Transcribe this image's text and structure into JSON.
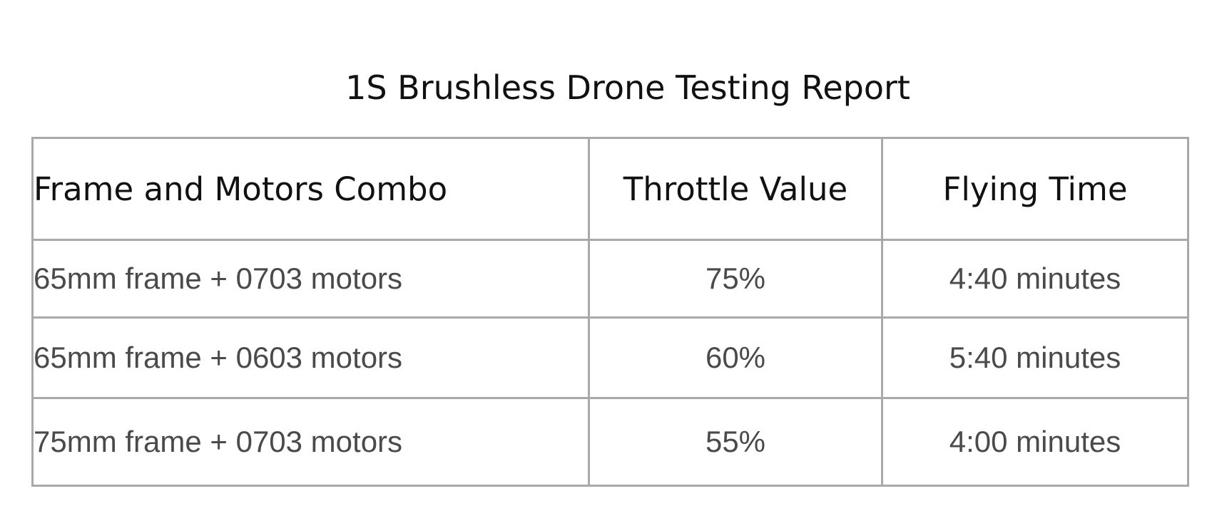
{
  "title": "1S Brushless Drone Testing Report",
  "table": {
    "headers": [
      "Frame and Motors Combo",
      "Throttle Value",
      "Flying Time"
    ],
    "rows": [
      [
        "65mm frame + 0703 motors",
        "75%",
        "4:40 minutes"
      ],
      [
        "65mm frame + 0603 motors",
        "60%",
        "5:40 minutes"
      ],
      [
        "75mm frame + 0703 motors",
        "55%",
        "4:00 minutes"
      ]
    ]
  }
}
